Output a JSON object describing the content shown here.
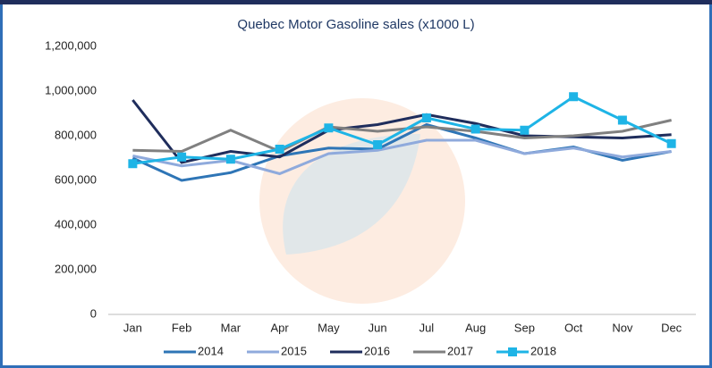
{
  "chart_data": {
    "type": "line",
    "title": "Quebec Motor Gasoline sales (x1000 L)",
    "categories": [
      "Jan",
      "Feb",
      "Mar",
      "Apr",
      "May",
      "Jun",
      "Jul",
      "Aug",
      "Sep",
      "Oct",
      "Nov",
      "Dec"
    ],
    "ylim": [
      0,
      1200000
    ],
    "yticks": [
      0,
      {
        "value": 200000,
        "label": "200,000"
      },
      {
        "value": 400000,
        "label": "400,000"
      },
      {
        "value": 600000,
        "label": "600,000"
      },
      {
        "value": 800000,
        "label": "800,000"
      },
      {
        "value": 1000000,
        "label": "1,000,000"
      },
      {
        "value": 1200000,
        "label": "1,200,000"
      }
    ],
    "grid": false,
    "legend": "bottom",
    "series": [
      {
        "name": "2014",
        "color": "#2e75b6",
        "values": [
          700000,
          600000,
          635000,
          710000,
          745000,
          740000,
          850000,
          790000,
          720000,
          750000,
          690000,
          730000
        ]
      },
      {
        "name": "2015",
        "color": "#8faadc",
        "values": [
          710000,
          665000,
          690000,
          630000,
          720000,
          735000,
          780000,
          780000,
          720000,
          745000,
          705000,
          730000
        ]
      },
      {
        "name": "2016",
        "color": "#1f2d5c",
        "values": [
          960000,
          680000,
          730000,
          705000,
          825000,
          850000,
          895000,
          855000,
          800000,
          795000,
          790000,
          805000
        ]
      },
      {
        "name": "2017",
        "color": "#808080",
        "values": [
          735000,
          730000,
          825000,
          730000,
          840000,
          820000,
          840000,
          820000,
          790000,
          800000,
          820000,
          870000
        ]
      },
      {
        "name": "2018",
        "color": "#1eb4e6",
        "marker": "square",
        "values": [
          675000,
          705000,
          695000,
          740000,
          835000,
          760000,
          880000,
          830000,
          825000,
          975000,
          870000,
          765000
        ]
      }
    ]
  }
}
